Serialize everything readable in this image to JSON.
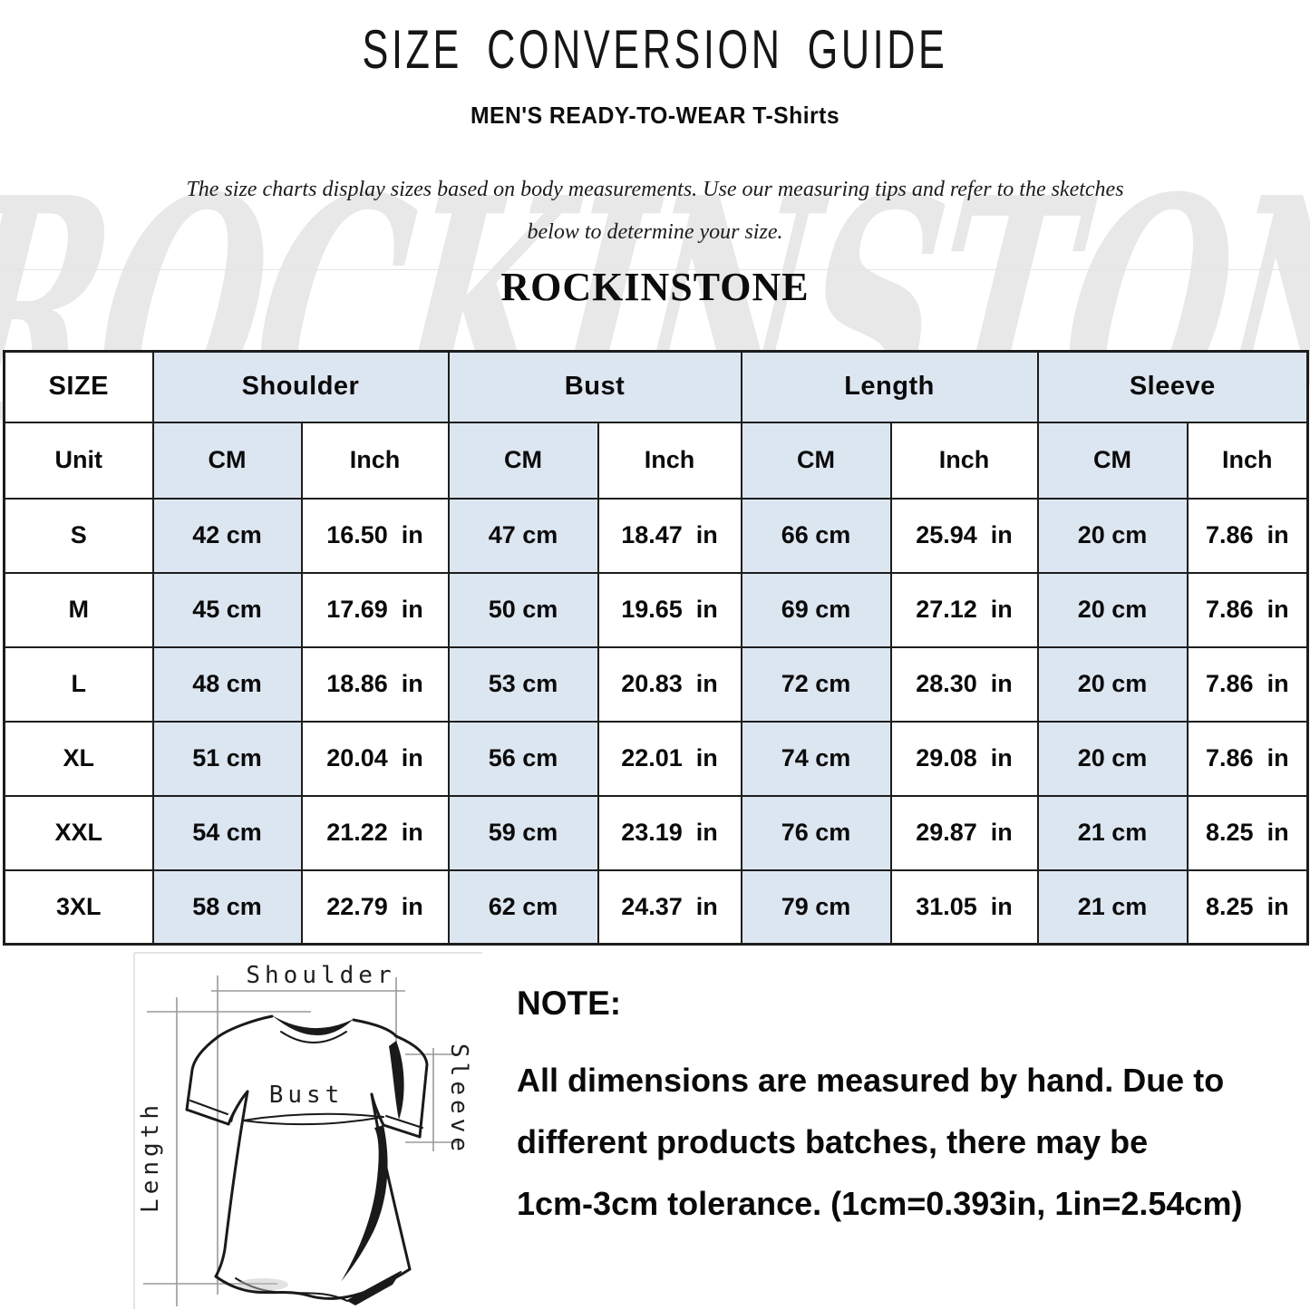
{
  "header": {
    "title": "SIZE CONVERSION GUIDE",
    "subtitle": "MEN'S READY-TO-WEAR T-Shirts",
    "description": "The size charts display sizes based on body measurements. Use our measuring tips and refer to the sketches\nbelow to determine your size.",
    "brand": "ROCKINSTONE",
    "watermark": "ROCKINSTONE"
  },
  "table": {
    "groups": [
      "SIZE",
      "Shoulder",
      "Bust",
      "Length",
      "Sleeve"
    ],
    "unit_row": [
      "Unit",
      "CM",
      "Inch",
      "CM",
      "Inch",
      "CM",
      "Inch",
      "CM",
      "Inch"
    ],
    "rows": [
      [
        "S",
        "42 cm",
        "16.50  in",
        "47 cm",
        "18.47  in",
        "66 cm",
        "25.94  in",
        "20 cm",
        "7.86  in"
      ],
      [
        "M",
        "45 cm",
        "17.69  in",
        "50 cm",
        "19.65  in",
        "69 cm",
        "27.12  in",
        "20 cm",
        "7.86  in"
      ],
      [
        "L",
        "48 cm",
        "18.86  in",
        "53 cm",
        "20.83  in",
        "72 cm",
        "28.30  in",
        "20 cm",
        "7.86  in"
      ],
      [
        "XL",
        "51 cm",
        "20.04  in",
        "56 cm",
        "22.01  in",
        "74 cm",
        "29.08  in",
        "20 cm",
        "7.86  in"
      ],
      [
        "XXL",
        "54 cm",
        "21.22  in",
        "59 cm",
        "23.19  in",
        "76 cm",
        "29.87  in",
        "21 cm",
        "8.25  in"
      ],
      [
        "3XL",
        "58 cm",
        "22.79  in",
        "62 cm",
        "24.37  in",
        "79 cm",
        "31.05  in",
        "21 cm",
        "8.25  in"
      ]
    ]
  },
  "diagram": {
    "shoulder_label": "Shoulder",
    "bust_label": "Bust",
    "length_label": "Length",
    "sleeve_label": "Sleeve"
  },
  "note": {
    "heading": "NOTE:",
    "body": "All dimensions are measured by hand. Due to\ndifferent products batches, there may be\n1cm-3cm tolerance. (1cm=0.393in, 1in=2.54cm)"
  },
  "colors": {
    "cell_blue": "#dce6f1",
    "table_border": "#1d1d1d",
    "watermark_gray": "#e8e8e8",
    "dim_line_gray": "#9a9a9a",
    "ink_black": "#1a1a1a"
  }
}
